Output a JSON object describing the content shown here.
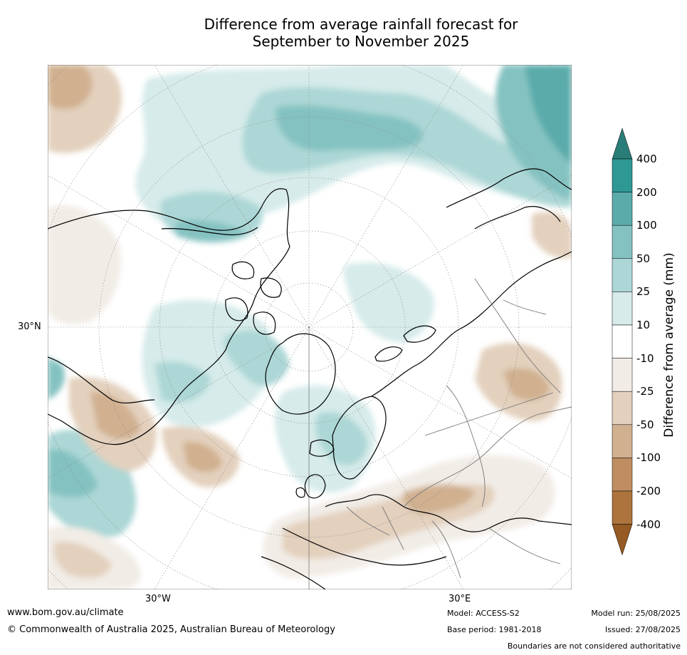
{
  "title": {
    "line1": "Difference from average rainfall forecast for",
    "line2": "September to November 2025"
  },
  "map": {
    "projection": "north polar stereographic",
    "lat_labels": [
      "30°N"
    ],
    "lon_labels": [
      "30°W",
      "30°E"
    ]
  },
  "legend": {
    "title": "Difference from average (mm)",
    "tick_labels": [
      "400",
      "200",
      "100",
      "50",
      "25",
      "10",
      "-10",
      "-25",
      "-50",
      "-100",
      "-200",
      "-400"
    ],
    "colors": [
      "#2a7c78",
      "#2e9894",
      "#5aabaa",
      "#84c2c1",
      "#acd7d6",
      "#d6ebea",
      "#ffffff",
      "#f1ece6",
      "#e3d0bd",
      "#d0b08f",
      "#bf8d61",
      "#ad743d",
      "#965a24"
    ]
  },
  "footer": {
    "website": "www.bom.gov.au/climate",
    "copyright": "© Commonwealth of Australia 2025, Australian Bureau of Meteorology",
    "model": "Model: ACCESS-S2",
    "base_period": "Base period: 1981-2018",
    "model_run": "Model run: 25/08/2025",
    "issued": "Issued: 27/08/2025",
    "disclaimer": "Boundaries are not considered authoritative"
  }
}
